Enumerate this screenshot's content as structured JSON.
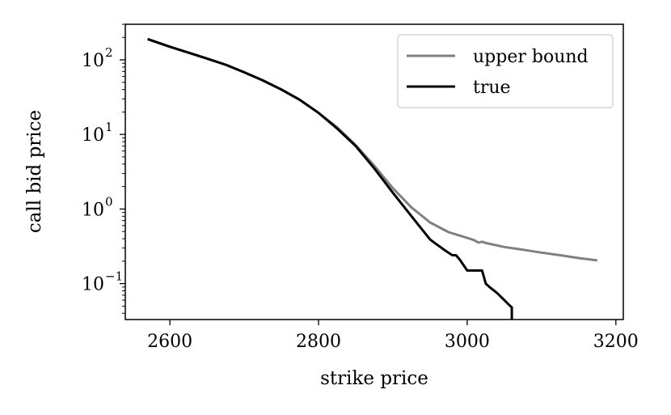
{
  "chart_data": {
    "type": "line",
    "xlabel": "strike price",
    "ylabel": "call bid price",
    "xlim": [
      2540,
      3210
    ],
    "ylim": [
      0.033,
      300
    ],
    "yscale": "log",
    "grid": false,
    "legend_position": "top-right",
    "x_ticks": [
      {
        "value": 2600,
        "label": "2600"
      },
      {
        "value": 2800,
        "label": "2800"
      },
      {
        "value": 3000,
        "label": "3000"
      },
      {
        "value": 3200,
        "label": "3200"
      }
    ],
    "y_ticks": [
      {
        "value": 100,
        "base": "10",
        "exp": "2"
      },
      {
        "value": 10,
        "base": "10",
        "exp": "1"
      },
      {
        "value": 1,
        "base": "10",
        "exp": "0"
      },
      {
        "value": 0.1,
        "base": "10",
        "exp": "−1"
      }
    ],
    "series": [
      {
        "name": "upper bound",
        "color": "#808080",
        "x": [
          2570,
          2600,
          2625,
          2650,
          2675,
          2700,
          2725,
          2750,
          2775,
          2800,
          2825,
          2850,
          2875,
          2900,
          2925,
          2950,
          2975,
          3000,
          3010,
          3015,
          3020,
          3025,
          3050,
          3075,
          3100,
          3125,
          3150,
          3175
        ],
        "y": [
          190,
          150,
          125,
          104,
          86,
          68,
          53,
          40,
          29,
          19.5,
          12.5,
          7.2,
          3.8,
          1.9,
          1.05,
          0.66,
          0.49,
          0.41,
          0.38,
          0.355,
          0.365,
          0.35,
          0.31,
          0.285,
          0.26,
          0.24,
          0.22,
          0.205
        ]
      },
      {
        "name": "true",
        "color": "#000000",
        "x": [
          2570,
          2600,
          2625,
          2650,
          2675,
          2700,
          2725,
          2750,
          2775,
          2800,
          2825,
          2850,
          2875,
          2900,
          2925,
          2940,
          2950,
          2960,
          2970,
          2980,
          2985,
          2990,
          3000,
          3005,
          3010,
          3015,
          3020,
          3025,
          3030,
          3040,
          3050,
          3058,
          3060,
          3060
        ],
        "y": [
          190,
          150,
          125,
          104,
          86,
          68,
          53,
          40,
          29,
          19.5,
          12,
          7,
          3.5,
          1.65,
          0.8,
          0.52,
          0.39,
          0.33,
          0.28,
          0.24,
          0.24,
          0.21,
          0.15,
          0.15,
          0.15,
          0.15,
          0.15,
          0.1,
          0.09,
          0.075,
          0.06,
          0.05,
          0.048,
          0.033
        ]
      }
    ]
  }
}
